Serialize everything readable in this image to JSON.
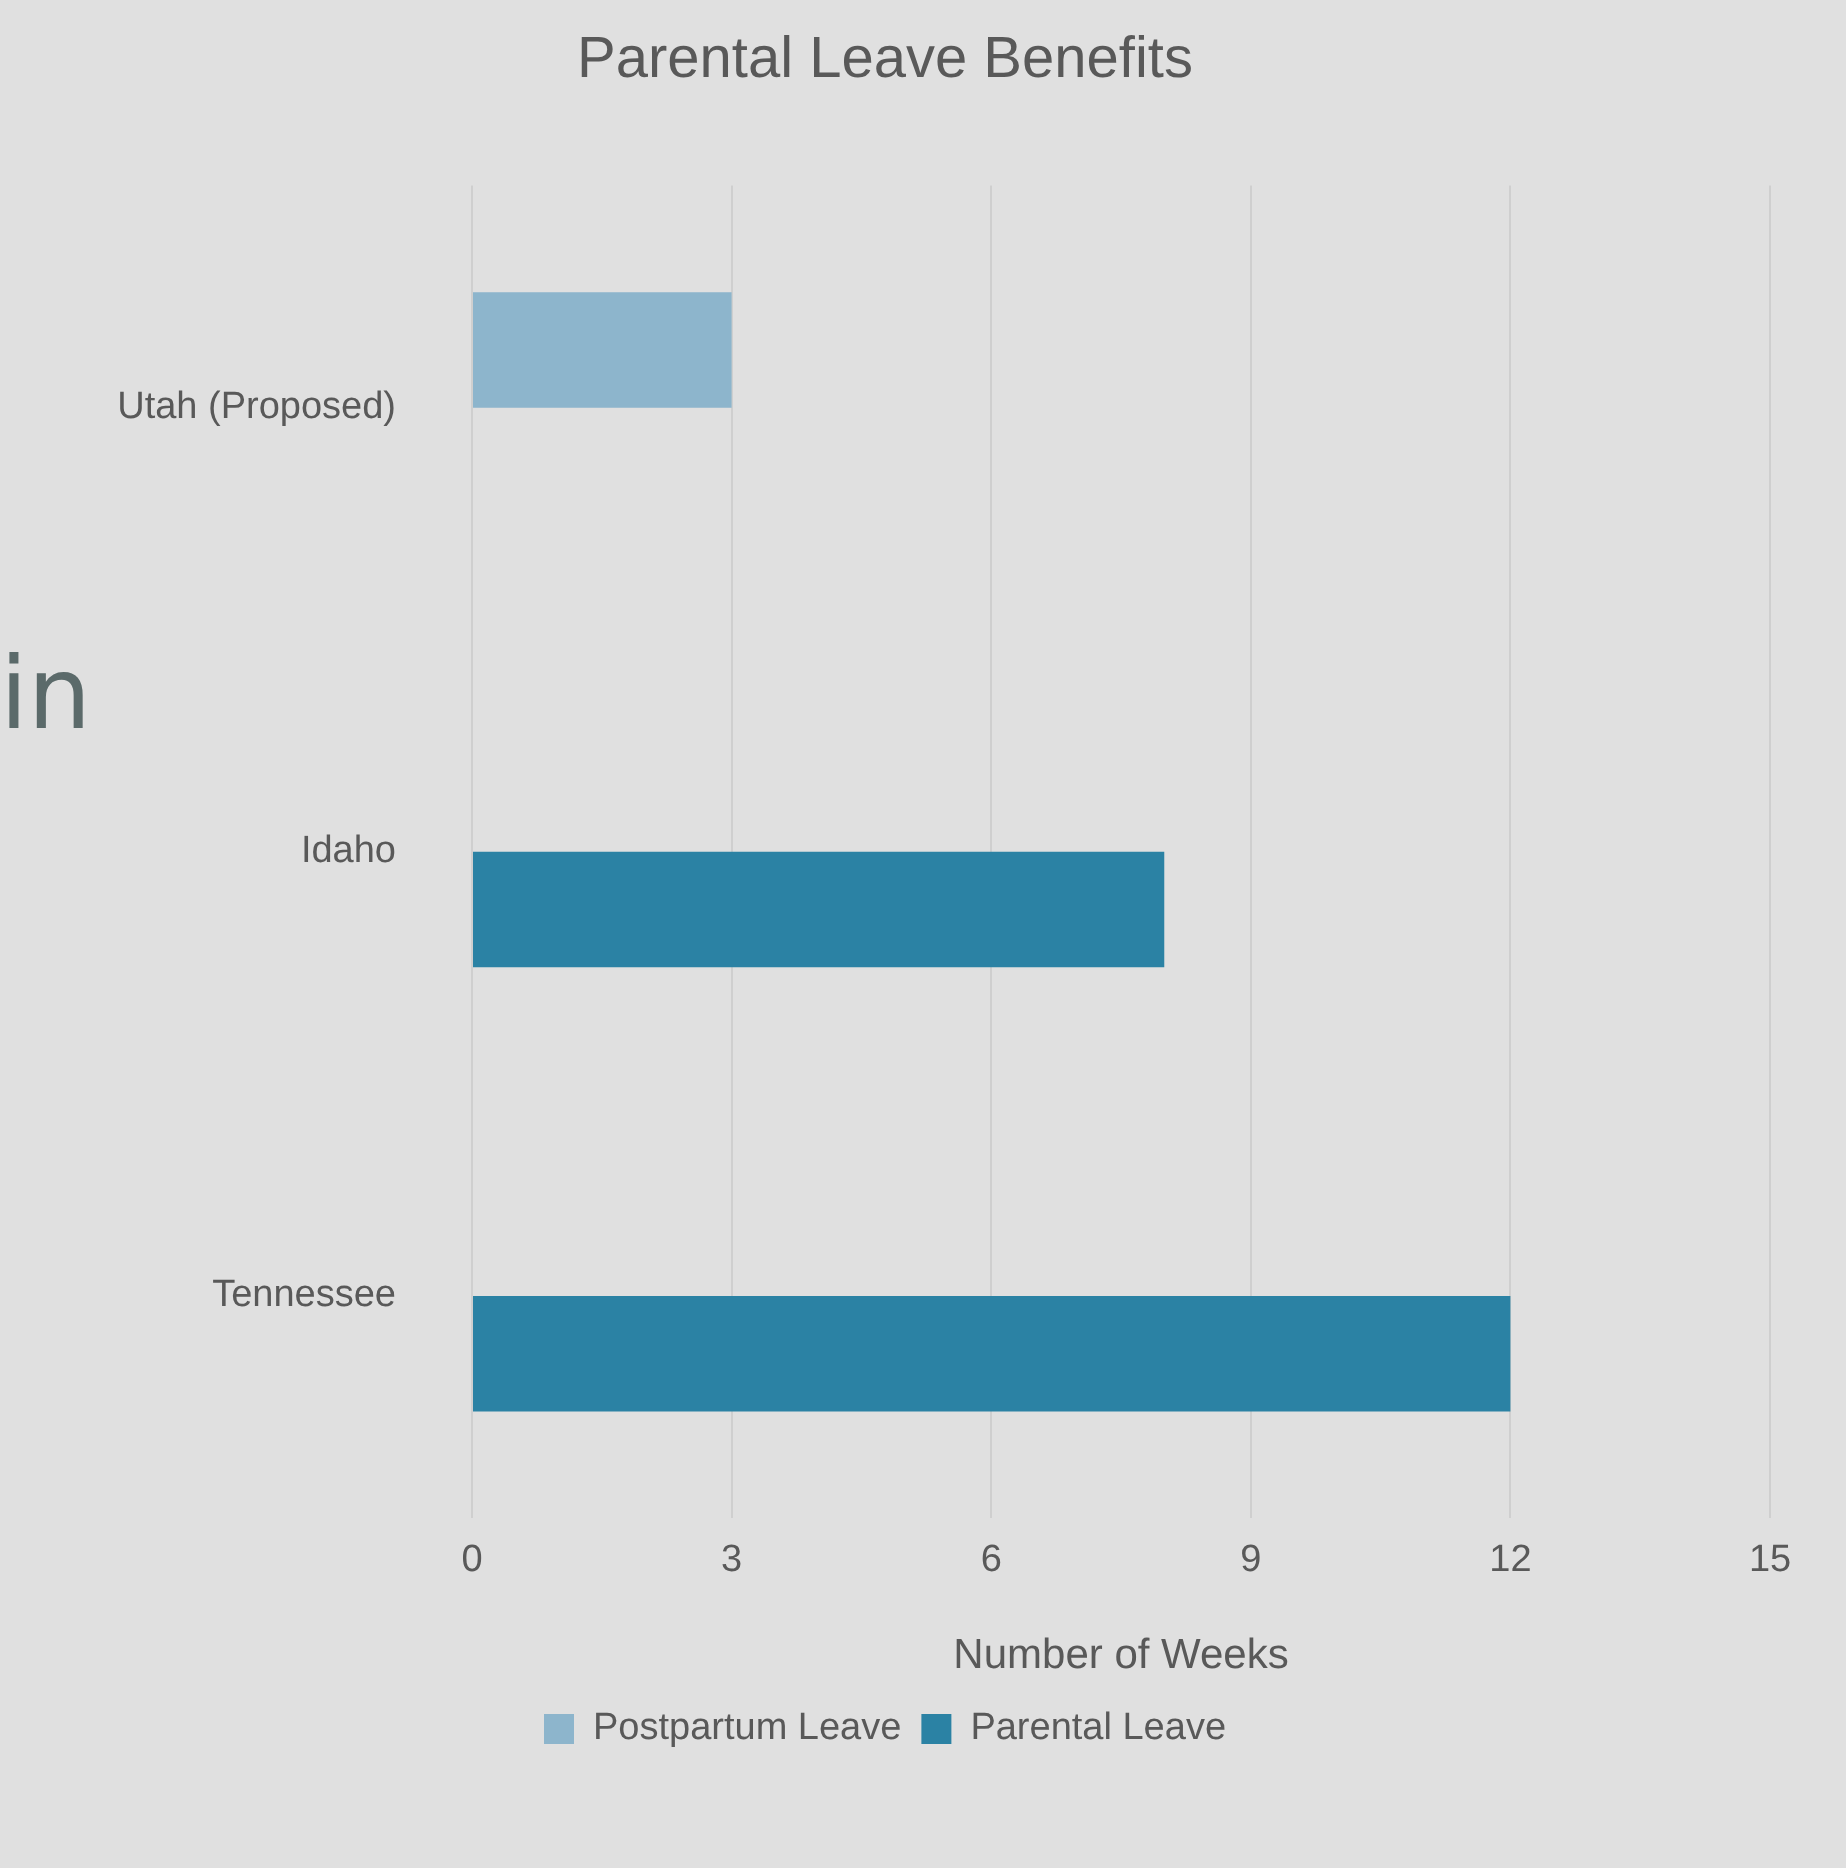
{
  "chart_data": {
    "type": "bar",
    "orientation": "horizontal",
    "title": "Parental Leave Benefits",
    "xlabel": "Number of Weeks",
    "categories": [
      "Utah (Proposed)",
      "Idaho",
      "Tennessee"
    ],
    "series": [
      {
        "name": "Postpartum Leave",
        "color": "#8db5cc",
        "values": [
          3,
          null,
          null
        ]
      },
      {
        "name": "Parental Leave",
        "color": "#2b82a4",
        "values": [
          null,
          8,
          12
        ]
      }
    ],
    "xlim": [
      0,
      15
    ],
    "xticks": [
      0,
      3,
      6,
      9,
      12,
      15
    ],
    "grid": "x",
    "legend": "bottom",
    "annotations": [
      "in"
    ]
  }
}
